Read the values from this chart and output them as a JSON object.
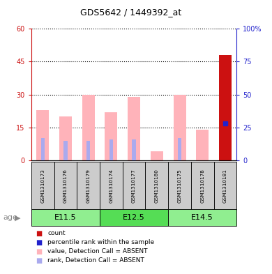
{
  "title": "GDS5642 / 1449392_at",
  "samples": [
    "GSM1310173",
    "GSM1310176",
    "GSM1310179",
    "GSM1310174",
    "GSM1310177",
    "GSM1310180",
    "GSM1310175",
    "GSM1310178",
    "GSM1310181"
  ],
  "age_groups": [
    {
      "label": "E11.5",
      "start": 0,
      "end": 3,
      "color": "#90EE90"
    },
    {
      "label": "E12.5",
      "start": 3,
      "end": 6,
      "color": "#55DD55"
    },
    {
      "label": "E14.5",
      "start": 6,
      "end": 9,
      "color": "#90EE90"
    }
  ],
  "pink_values": [
    23,
    20,
    30,
    22,
    29,
    4,
    30,
    14,
    0
  ],
  "blue_rank_values": [
    17,
    15,
    15,
    16,
    16,
    0,
    17,
    0,
    0
  ],
  "red_bar_value": 48,
  "blue_dot_pct": 28,
  "ylim_left": [
    0,
    60
  ],
  "ylim_right": [
    0,
    100
  ],
  "yticks_left": [
    0,
    15,
    30,
    45,
    60
  ],
  "ytick_labels_left": [
    "0",
    "15",
    "30",
    "45",
    "60"
  ],
  "yticks_right": [
    0,
    25,
    50,
    75,
    100
  ],
  "ytick_labels_right": [
    "0",
    "25",
    "50",
    "75",
    "100%"
  ],
  "colors": {
    "pink_bar": "#FFB3BA",
    "blue_rank_bar": "#AAAAEE",
    "red_bar": "#CC1111",
    "blue_dot": "#2222CC",
    "sample_bg": "#CCCCCC",
    "left_axis": "#CC1111",
    "right_axis": "#2222CC",
    "border": "#000000"
  },
  "legend_items": [
    {
      "label": "count",
      "color": "#CC1111"
    },
    {
      "label": "percentile rank within the sample",
      "color": "#2222CC"
    },
    {
      "label": "value, Detection Call = ABSENT",
      "color": "#FFB3BA"
    },
    {
      "label": "rank, Detection Call = ABSENT",
      "color": "#AAAAEE"
    }
  ]
}
